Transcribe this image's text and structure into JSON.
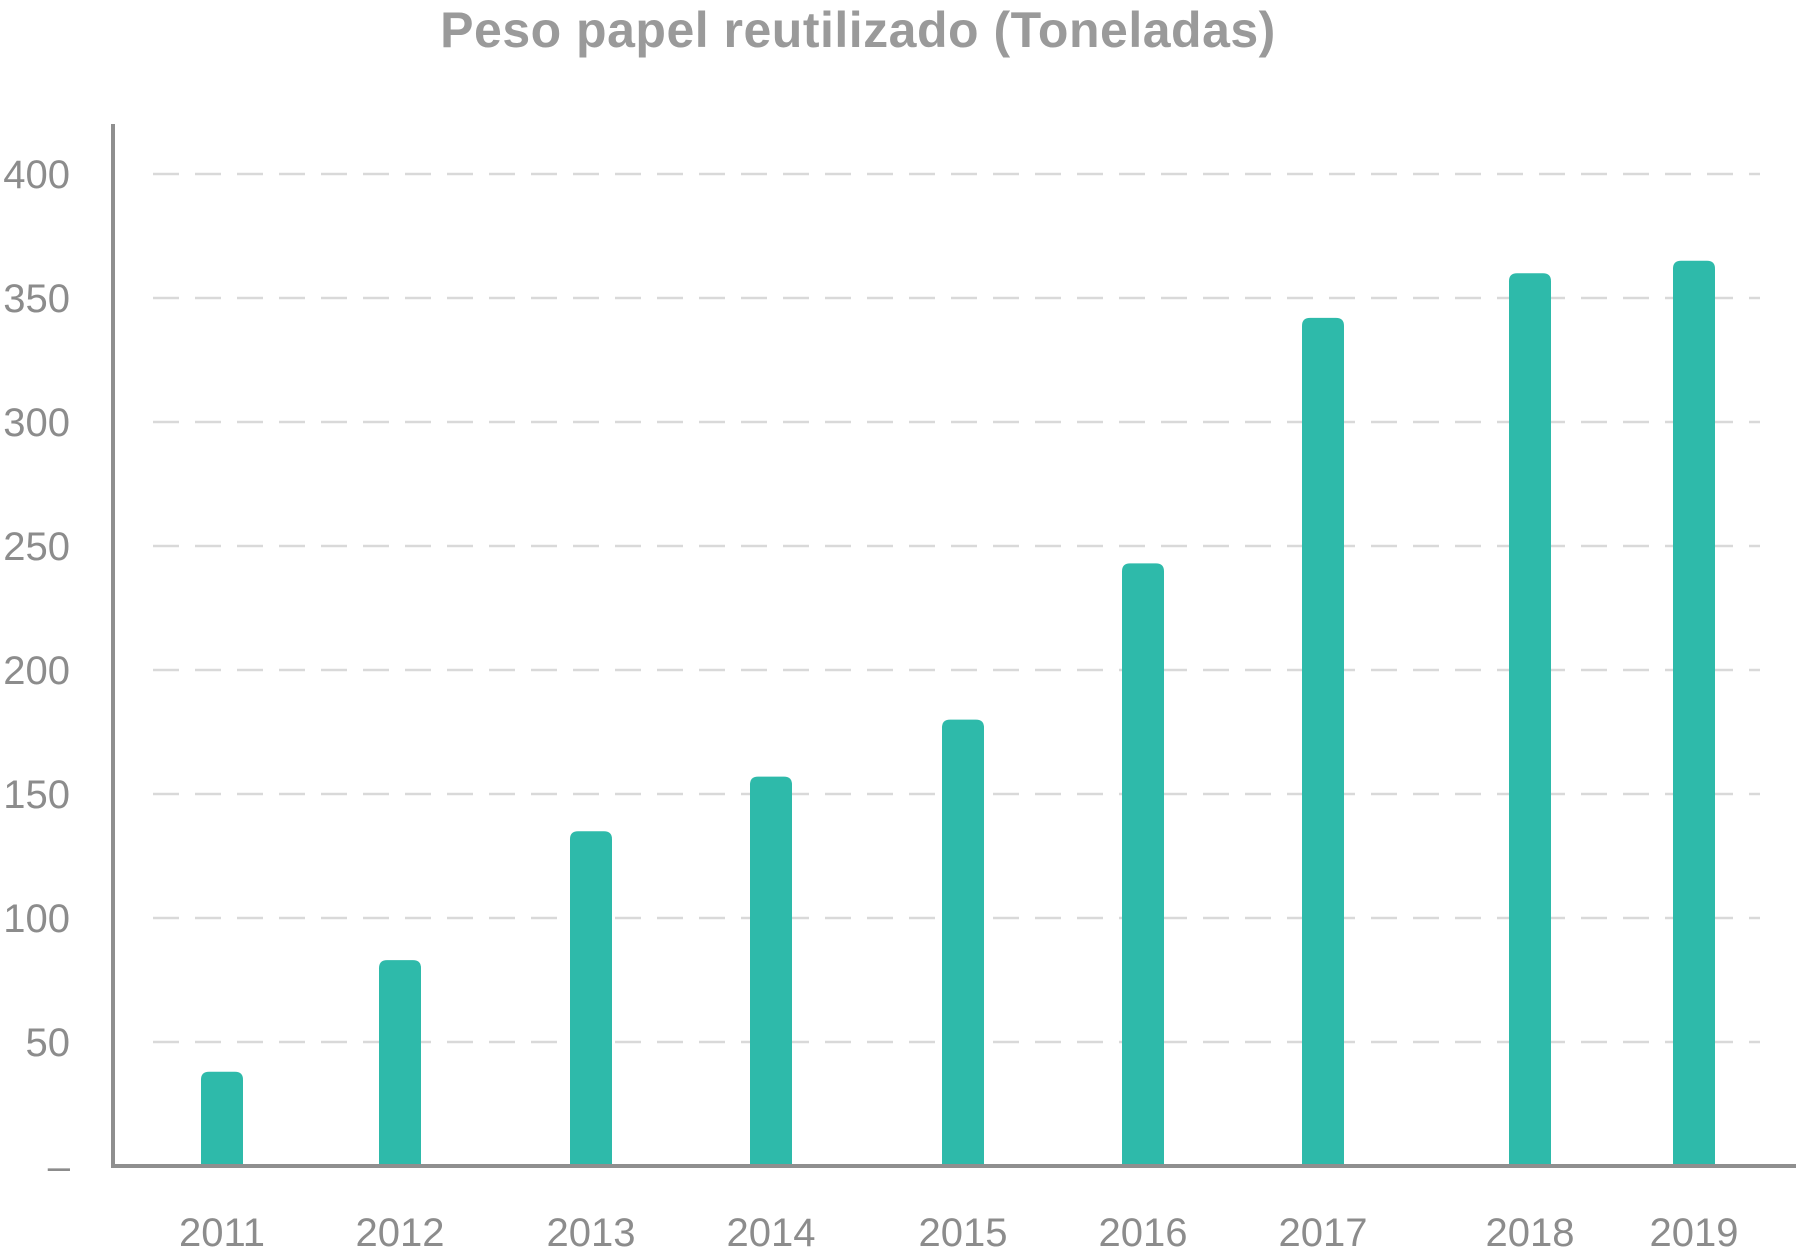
{
  "chart_data": {
    "type": "bar",
    "title": "Peso papel reutilizado (Toneladas)",
    "xlabel": "",
    "ylabel": "",
    "categories": [
      "2011",
      "2012",
      "2013",
      "2014",
      "2015",
      "2016",
      "2017",
      "2018",
      "2019"
    ],
    "values": [
      38,
      83,
      135,
      157,
      180,
      243,
      342,
      360,
      365
    ],
    "ylim": [
      0,
      400
    ],
    "yticks": [
      0,
      50,
      100,
      150,
      200,
      250,
      300,
      350,
      400
    ],
    "ytick_labels": [
      "–",
      "50",
      "100",
      "150",
      "200",
      "250",
      "300",
      "350",
      "400"
    ],
    "grid": true,
    "legend": "none",
    "colors": {
      "bar": "#2ebaaa",
      "axis": "#8f8f8f",
      "grid": "#d9d9d9",
      "text": "#8c8c8c",
      "title": "#9a9a9a"
    }
  }
}
